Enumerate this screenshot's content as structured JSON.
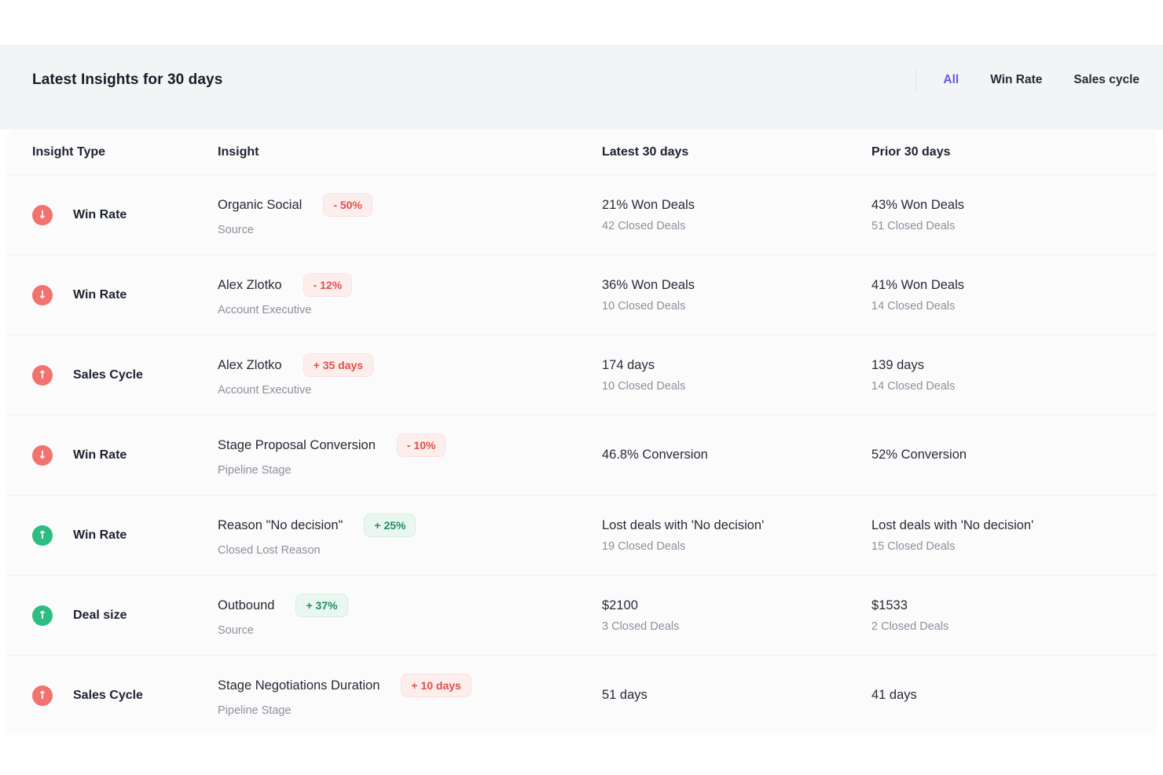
{
  "header": {
    "title": "Latest Insights for 30 days",
    "tabs": [
      {
        "label": "All",
        "active": true
      },
      {
        "label": "Win Rate",
        "active": false
      },
      {
        "label": "Sales cycle",
        "active": false
      }
    ]
  },
  "colors": {
    "accent_purple": "#635ce0",
    "trend_red": "#f1726e",
    "trend_green": "#2cbd81",
    "badge_red_text": "#e14f4a",
    "badge_green_text": "#1f8f60",
    "topbar_bg": "#f3f4f5",
    "card_bg": "#fbfbfc"
  },
  "table": {
    "columns": [
      "Insight Type",
      "Insight",
      "Latest 30 days",
      "Prior 30 days"
    ],
    "rows": [
      {
        "type": "Win Rate",
        "trend": "down",
        "trend_color": "red",
        "insight": "Organic Social",
        "badge": "- 50%",
        "badge_color": "red",
        "category": "Source",
        "latest": "21% Won Deals",
        "latest_sub": "42 Closed Deals",
        "prior": "43% Won Deals",
        "prior_sub": "51 Closed Deals"
      },
      {
        "type": "Win Rate",
        "trend": "down",
        "trend_color": "red",
        "insight": "Alex Zlotko",
        "badge": "- 12%",
        "badge_color": "red",
        "category": "Account Executive",
        "latest": "36% Won Deals",
        "latest_sub": "10 Closed Deals",
        "prior": "41% Won Deals",
        "prior_sub": "14 Closed Deals"
      },
      {
        "type": "Sales Cycle",
        "trend": "up",
        "trend_color": "red",
        "insight": "Alex Zlotko",
        "badge": "+ 35 days",
        "badge_color": "red",
        "category": "Account Executive",
        "latest": "174 days",
        "latest_sub": "10 Closed Deals",
        "prior": "139 days",
        "prior_sub": "14 Closed Deals"
      },
      {
        "type": "Win Rate",
        "trend": "down",
        "trend_color": "red",
        "insight": "Stage Proposal Conversion",
        "badge": "- 10%",
        "badge_color": "red",
        "category": "Pipeline Stage",
        "latest": "46.8% Conversion",
        "latest_sub": "",
        "prior": "52% Conversion",
        "prior_sub": ""
      },
      {
        "type": "Win Rate",
        "trend": "up",
        "trend_color": "green",
        "insight": "Reason \"No decision\"",
        "badge": "+ 25%",
        "badge_color": "green",
        "category": "Closed Lost Reason",
        "latest": "Lost deals with 'No decision'",
        "latest_sub": "19 Closed Deals",
        "prior": "Lost deals with 'No decision'",
        "prior_sub": "15 Closed Deals"
      },
      {
        "type": "Deal size",
        "trend": "up",
        "trend_color": "green",
        "insight": "Outbound",
        "badge": "+ 37%",
        "badge_color": "green",
        "category": "Source",
        "latest": "$2100",
        "latest_sub": "3 Closed Deals",
        "prior": "$1533",
        "prior_sub": "2 Closed Deals"
      },
      {
        "type": "Sales Cycle",
        "trend": "up",
        "trend_color": "red",
        "insight": "Stage Negotiations Duration",
        "badge": "+ 10 days",
        "badge_color": "red",
        "category": "Pipeline Stage",
        "latest": "51 days",
        "latest_sub": "",
        "prior": "41 days",
        "prior_sub": ""
      }
    ]
  }
}
